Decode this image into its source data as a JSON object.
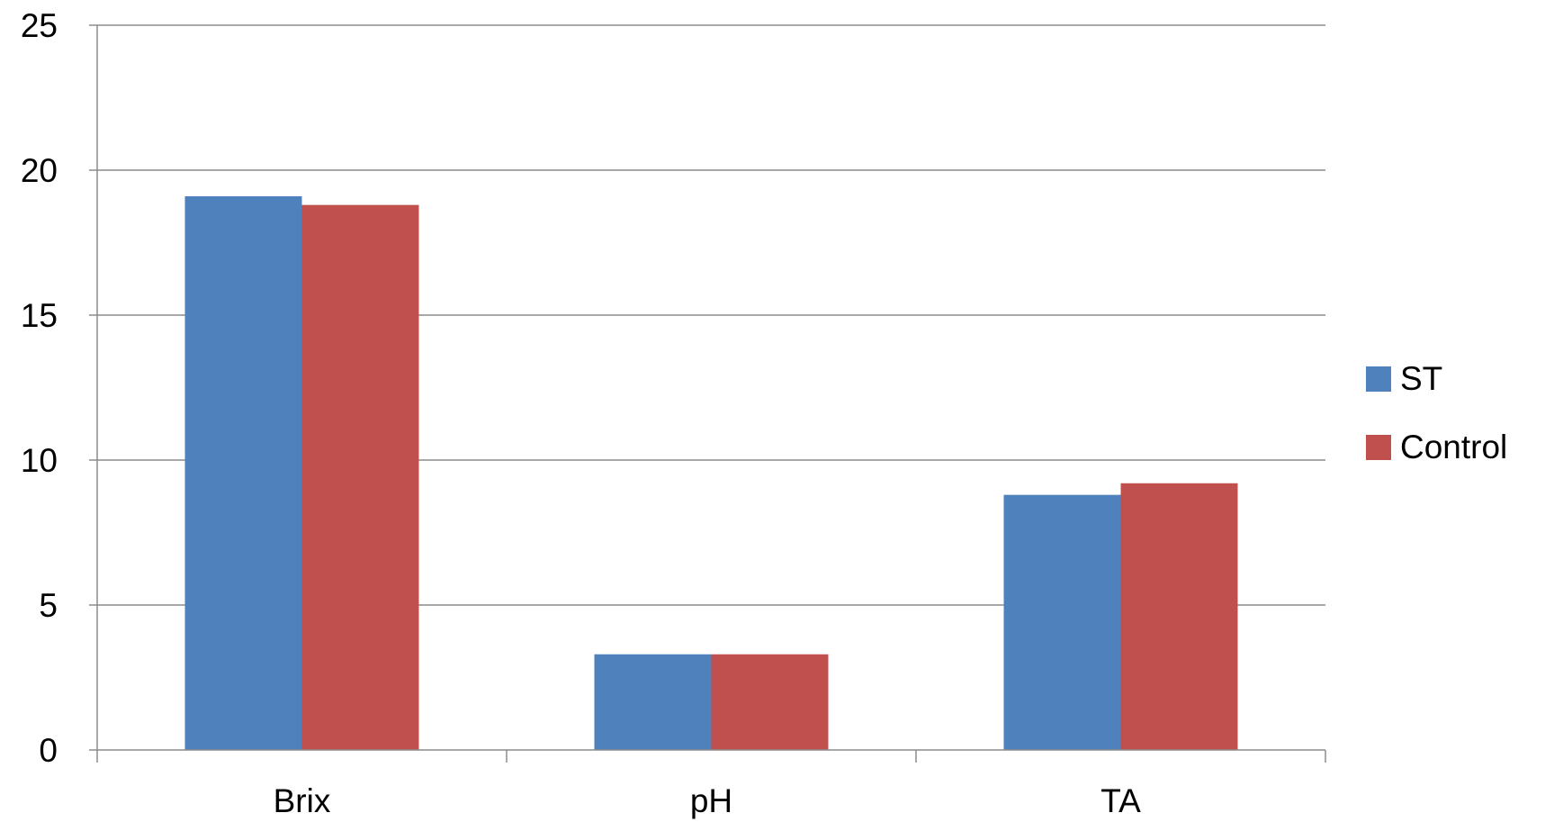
{
  "chart_data": {
    "type": "bar",
    "title": "",
    "xlabel": "",
    "ylabel": "",
    "categories": [
      "Brix",
      "pH",
      "TA"
    ],
    "series": [
      {
        "name": "ST",
        "values": [
          19.1,
          3.3,
          8.8
        ],
        "color": "#4F81BD"
      },
      {
        "name": "Control",
        "values": [
          18.8,
          3.3,
          9.2
        ],
        "color": "#C0504D"
      }
    ],
    "ylim": [
      0,
      25
    ],
    "yticks": [
      "0",
      "5",
      "10",
      "15",
      "20",
      "25"
    ],
    "grid": true,
    "legend_position": "right"
  }
}
